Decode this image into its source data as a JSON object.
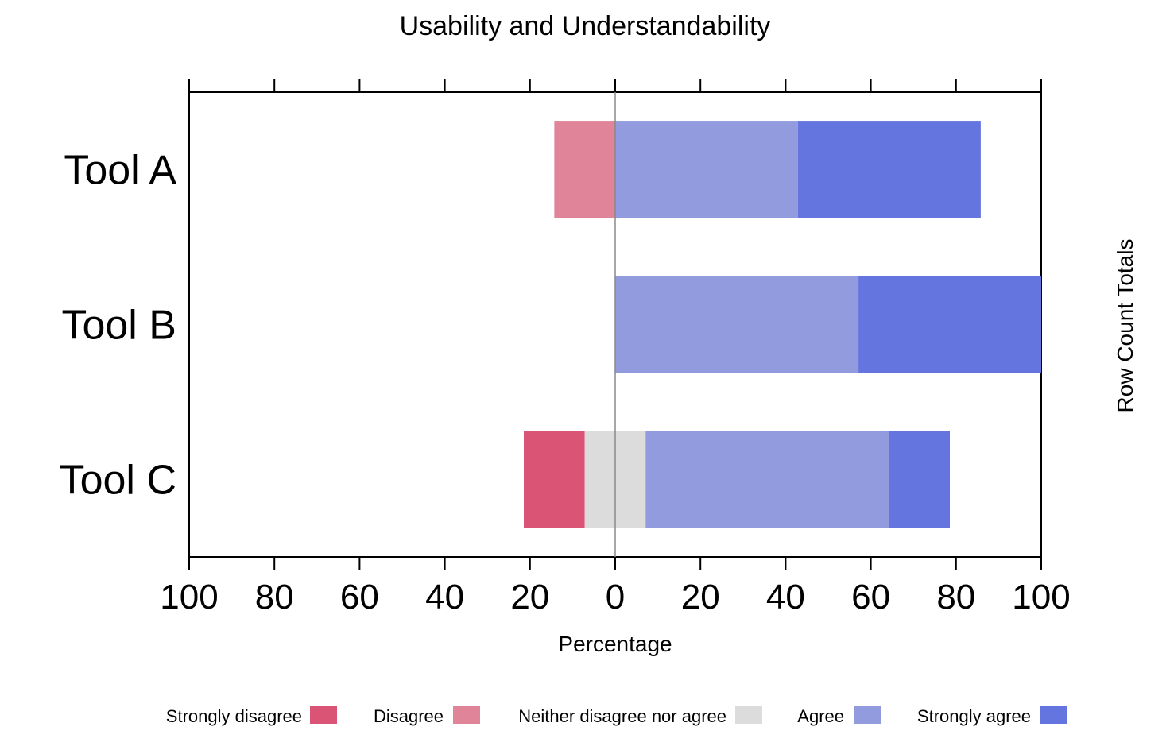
{
  "chart_data": {
    "type": "bar",
    "orientation": "horizontal",
    "stacking": "diverging",
    "title": "Usability and Understandability",
    "xlabel": "Percentage",
    "right_label": "Row Count Totals",
    "xlim": [
      -100,
      100
    ],
    "xticks": [
      -100,
      -80,
      -60,
      -40,
      -20,
      0,
      20,
      40,
      60,
      80,
      100
    ],
    "xtick_labels": [
      "100",
      "80",
      "60",
      "40",
      "20",
      "0",
      "20",
      "40",
      "60",
      "80",
      "100"
    ],
    "categories": [
      "Tool A",
      "Tool B",
      "Tool C"
    ],
    "series": [
      {
        "name": "Strongly disagree",
        "color": "#D95475",
        "values": [
          0,
          0,
          14.3
        ]
      },
      {
        "name": "Disagree",
        "color": "#E0849A",
        "values": [
          14.3,
          0,
          0
        ]
      },
      {
        "name": "Neither disagree nor agree",
        "color": "#DCDCDC",
        "values": [
          0,
          0,
          14.3
        ]
      },
      {
        "name": "Agree",
        "color": "#919BDE",
        "values": [
          42.9,
          57.1,
          57.1
        ]
      },
      {
        "name": "Strongly agree",
        "color": "#6575E0",
        "values": [
          42.9,
          42.9,
          14.3
        ]
      }
    ],
    "legend_position": "bottom",
    "grid": false
  }
}
